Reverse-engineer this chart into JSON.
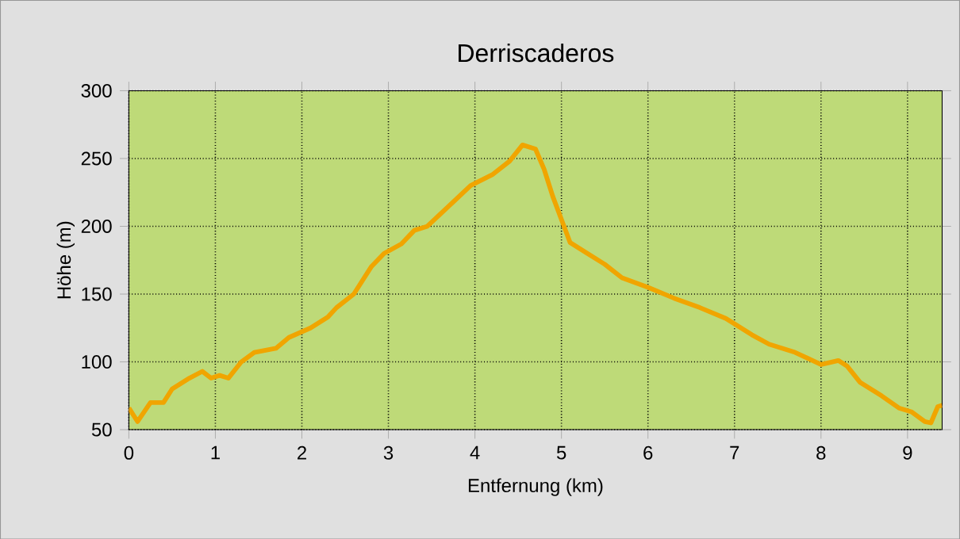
{
  "chart_data": {
    "type": "line",
    "title": "Derriscaderos",
    "xlabel": "Entfernung (km)",
    "ylabel": "Höhe (m)",
    "x": [
      0,
      0.1,
      0.25,
      0.4,
      0.5,
      0.7,
      0.85,
      0.95,
      1.05,
      1.15,
      1.3,
      1.45,
      1.7,
      1.85,
      2.1,
      2.3,
      2.4,
      2.6,
      2.8,
      2.95,
      3.15,
      3.3,
      3.45,
      3.7,
      3.95,
      4.2,
      4.4,
      4.55,
      4.7,
      4.8,
      4.9,
      5.0,
      5.1,
      5.3,
      5.5,
      5.7,
      6.0,
      6.3,
      6.6,
      6.9,
      7.2,
      7.4,
      7.7,
      8.0,
      8.2,
      8.3,
      8.45,
      8.7,
      8.9,
      9.05,
      9.2,
      9.27,
      9.35,
      9.4
    ],
    "series": [
      {
        "color": "#f0a500",
        "values": [
          66,
          56,
          70,
          70,
          80,
          88,
          93,
          88,
          90,
          88,
          100,
          107,
          110,
          118,
          125,
          133,
          140,
          150,
          170,
          180,
          187,
          197,
          200,
          215,
          230,
          238,
          248,
          260,
          257,
          242,
          222,
          205,
          188,
          180,
          172,
          162,
          155,
          147,
          140,
          132,
          120,
          113,
          107,
          98,
          101,
          97,
          85,
          75,
          66,
          63,
          56,
          55,
          67,
          68
        ]
      }
    ],
    "xlim": [
      0,
      9.4
    ],
    "ylim": [
      50,
      300
    ],
    "xticks": [
      0,
      1,
      2,
      3,
      4,
      5,
      6,
      7,
      8,
      9
    ],
    "yticks": [
      50,
      100,
      150,
      200,
      250,
      300
    ],
    "grid": true,
    "marker": "none",
    "line_style": "solid"
  }
}
